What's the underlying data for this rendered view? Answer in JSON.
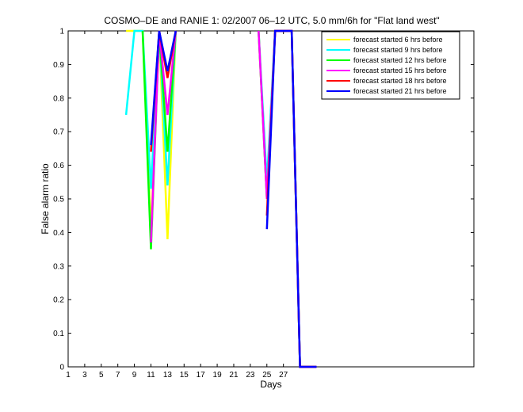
{
  "chart_data": {
    "type": "line",
    "title": "COSMO–DE and RANIE 1: 02/2007 06–12 UTC, 5.0 mm/6h for \"Flat land west\"",
    "xlabel": "Days",
    "ylabel": "False alarm ratio",
    "xlim": [
      1,
      50
    ],
    "ylim": [
      0,
      1
    ],
    "xticks": [
      1,
      3,
      5,
      7,
      9,
      11,
      13,
      15,
      17,
      19,
      21,
      23,
      25,
      27
    ],
    "yticks": [
      0,
      0.1,
      0.2,
      0.3,
      0.4,
      0.5,
      0.6,
      0.7,
      0.8,
      0.9,
      1
    ],
    "ytick_labels": [
      "0",
      "0.1",
      "0.2",
      "0.3",
      "0.4",
      "0.5",
      "0.6",
      "0.7",
      "0.8",
      "0.9",
      "1"
    ],
    "grid": false,
    "legend_position": "top-right",
    "series": [
      {
        "name": "forecast started 6 hrs before",
        "color": "#ffff00",
        "points": [
          [
            8,
            1.0
          ],
          [
            10,
            1.0
          ],
          [
            11,
            0.4
          ],
          [
            12,
            1.0
          ],
          [
            13,
            0.38
          ],
          [
            14,
            1.0
          ],
          [
            null,
            null
          ],
          [
            24,
            1.0
          ],
          [
            25,
            0.5
          ],
          [
            26,
            1.0
          ],
          [
            28,
            1.0
          ],
          [
            29,
            0.0
          ],
          [
            31,
            0.0
          ]
        ]
      },
      {
        "name": "forecast started 9 hrs before",
        "color": "#00ffff",
        "points": [
          [
            8,
            0.75
          ],
          [
            9,
            1.0
          ],
          [
            10,
            1.0
          ],
          [
            11,
            0.53
          ],
          [
            12,
            1.0
          ],
          [
            13,
            0.54
          ],
          [
            14,
            1.0
          ],
          [
            null,
            null
          ],
          [
            24,
            1.0
          ],
          [
            25,
            0.55
          ],
          [
            26,
            1.0
          ],
          [
            28,
            1.0
          ],
          [
            29,
            0.0
          ],
          [
            31,
            0.0
          ]
        ]
      },
      {
        "name": "forecast started 12 hrs before",
        "color": "#00ff00",
        "points": [
          [
            10,
            1.0
          ],
          [
            11,
            0.35
          ],
          [
            12,
            1.0
          ],
          [
            13,
            0.64
          ],
          [
            14,
            1.0
          ],
          [
            null,
            null
          ],
          [
            24,
            1.0
          ],
          [
            25,
            0.5
          ],
          [
            26,
            1.0
          ],
          [
            28,
            1.0
          ],
          [
            29,
            0.0
          ],
          [
            31,
            0.0
          ]
        ]
      },
      {
        "name": "forecast started 15 hrs before",
        "color": "#ff00ff",
        "points": [
          [
            11,
            0.37
          ],
          [
            12,
            1.0
          ],
          [
            13,
            0.75
          ],
          [
            14,
            1.0
          ],
          [
            null,
            null
          ],
          [
            24,
            1.0
          ],
          [
            25,
            0.5
          ],
          [
            26,
            1.0
          ],
          [
            28,
            1.0
          ],
          [
            29,
            0.0
          ],
          [
            31,
            0.0
          ]
        ]
      },
      {
        "name": "forecast started 18 hrs before",
        "color": "#ff0000",
        "points": [
          [
            11,
            0.64
          ],
          [
            12,
            1.0
          ],
          [
            13,
            0.86
          ],
          [
            14,
            1.0
          ],
          [
            null,
            null
          ],
          [
            25,
            0.45
          ],
          [
            26,
            1.0
          ],
          [
            28,
            1.0
          ],
          [
            29,
            0.0
          ],
          [
            31,
            0.0
          ]
        ]
      },
      {
        "name": "forecast started 21 hrs before",
        "color": "#0000ff",
        "points": [
          [
            11,
            0.66
          ],
          [
            12,
            1.0
          ],
          [
            13,
            0.88
          ],
          [
            14,
            1.0
          ],
          [
            null,
            null
          ],
          [
            25,
            0.41
          ],
          [
            26,
            1.0
          ],
          [
            28,
            1.0
          ],
          [
            29,
            0.0
          ],
          [
            31,
            0.0
          ]
        ]
      }
    ]
  }
}
